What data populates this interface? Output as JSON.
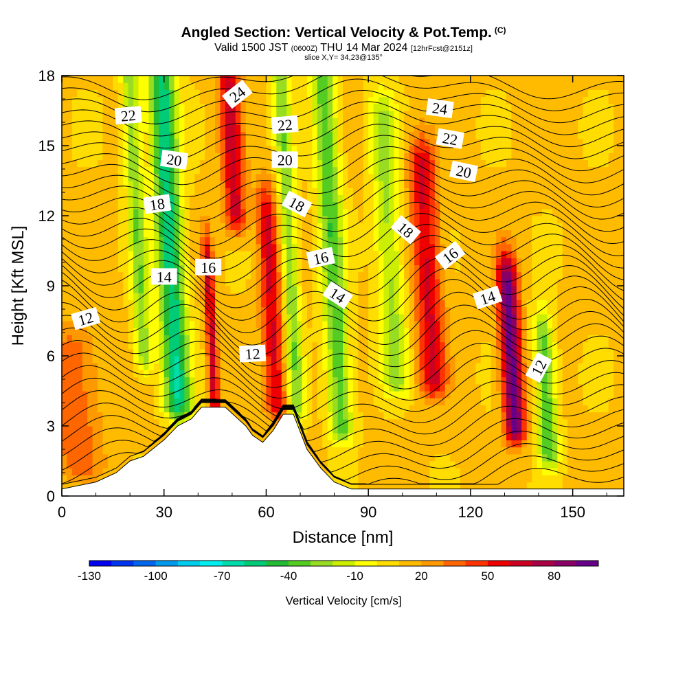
{
  "header": {
    "title": "Angled Section: Vertical Velocity & Pot.Temp.",
    "title_badge": "(C)",
    "line2_a": "Valid 1500 JST",
    "line2_b": "(0600Z)",
    "line2_c": "THU 14 Mar 2024",
    "line2_d": "[12hrFcst@2151z]",
    "line3": "slice X,Y= 34,23@135°"
  },
  "chart_data": {
    "type": "heatmap",
    "title": "Angled Section: Vertical Velocity & Pot.Temp.",
    "xlabel": "Distance [nm]",
    "ylabel": "Height [Kft MSL]",
    "xlim": [
      0,
      165
    ],
    "ylim": [
      0,
      18
    ],
    "xticks": [
      0,
      30,
      60,
      90,
      120,
      150
    ],
    "yticks": [
      0,
      3,
      6,
      9,
      12,
      15,
      18
    ],
    "colorbar": {
      "label": "Vertical Velocity [cm/s]",
      "tick_values": [
        -130,
        -100,
        -70,
        -40,
        -10,
        20,
        50,
        80
      ],
      "range": [
        -130,
        100
      ],
      "step": 10,
      "colors": [
        "#0000ee",
        "#0033ee",
        "#0066ee",
        "#0099ee",
        "#00ccee",
        "#00eeee",
        "#00ddaa",
        "#00cc77",
        "#22bb33",
        "#55cc22",
        "#99dd22",
        "#ccee00",
        "#ffff00",
        "#ffdd00",
        "#ffbb00",
        "#ff9900",
        "#ff6600",
        "#ff3300",
        "#ee0000",
        "#cc0022",
        "#aa0044",
        "#880066",
        "#660088"
      ]
    },
    "velocity_features": [
      {
        "x": 34,
        "zmin": 4.0,
        "zmax": 18,
        "w": -70,
        "width": 4
      },
      {
        "x": 24,
        "zmin": 6.0,
        "zmax": 18,
        "w": -40,
        "width": 2.5
      },
      {
        "x": 45,
        "zmin": 3.8,
        "zmax": 10,
        "w": 55,
        "width": 1.5
      },
      {
        "x": 51,
        "zmin": 12.0,
        "zmax": 18,
        "w": 55,
        "width": 3
      },
      {
        "x": 63,
        "zmin": 4.0,
        "zmax": 12,
        "w": 50,
        "width": 3
      },
      {
        "x": 69,
        "zmin": 4.0,
        "zmax": 18,
        "w": -40,
        "width": 2.5
      },
      {
        "x": 82,
        "zmin": 3.0,
        "zmax": 18,
        "w": -50,
        "width": 3.5
      },
      {
        "x": 98,
        "zmin": 5.0,
        "zmax": 16,
        "w": -35,
        "width": 4
      },
      {
        "x": 109,
        "zmin": 5.0,
        "zmax": 14,
        "w": 50,
        "width": 4
      },
      {
        "x": 133,
        "zmin": 3.0,
        "zmax": 9,
        "w": 85,
        "width": 3
      },
      {
        "x": 143,
        "zmin": 2.0,
        "zmax": 6.5,
        "w": -50,
        "width": 3
      },
      {
        "x": 5,
        "zmin": 1.5,
        "zmax": 6,
        "w": 25,
        "width": 7
      }
    ],
    "terrain": {
      "x": [
        0,
        10,
        16,
        20,
        24,
        30,
        34,
        38,
        41,
        44,
        48,
        54,
        56,
        59,
        62,
        65,
        68,
        72,
        76,
        80,
        85,
        90,
        165
      ],
      "height": [
        0.3,
        0.6,
        1.0,
        1.5,
        1.7,
        2.4,
        3.0,
        3.3,
        3.8,
        3.8,
        3.8,
        3.0,
        2.6,
        2.3,
        2.8,
        3.5,
        3.5,
        2.0,
        1.2,
        0.6,
        0.3,
        0.3,
        0.3
      ]
    },
    "isotherm_labels": [
      {
        "text": "22",
        "x": 19.5,
        "z": 16.3,
        "angle": -5
      },
      {
        "text": "24",
        "x": 51.5,
        "z": 17.2,
        "angle": -38
      },
      {
        "text": "22",
        "x": 65.5,
        "z": 15.9,
        "angle": -5
      },
      {
        "text": "24",
        "x": 111,
        "z": 16.6,
        "angle": 8
      },
      {
        "text": "20",
        "x": 33,
        "z": 14.4,
        "angle": 8
      },
      {
        "text": "20",
        "x": 65.5,
        "z": 14.4,
        "angle": 0
      },
      {
        "text": "22",
        "x": 114,
        "z": 15.3,
        "angle": 10
      },
      {
        "text": "20",
        "x": 118,
        "z": 13.9,
        "angle": 12
      },
      {
        "text": "18",
        "x": 28,
        "z": 12.5,
        "angle": -8
      },
      {
        "text": "18",
        "x": 69,
        "z": 12.5,
        "angle": 28
      },
      {
        "text": "18",
        "x": 101,
        "z": 11.4,
        "angle": 40
      },
      {
        "text": "16",
        "x": 43,
        "z": 9.8,
        "angle": 0
      },
      {
        "text": "16",
        "x": 76,
        "z": 10.2,
        "angle": -12
      },
      {
        "text": "16",
        "x": 114,
        "z": 10.3,
        "angle": -38
      },
      {
        "text": "14",
        "x": 30,
        "z": 9.4,
        "angle": 0
      },
      {
        "text": "14",
        "x": 81,
        "z": 8.6,
        "angle": 33
      },
      {
        "text": "14",
        "x": 125,
        "z": 8.5,
        "angle": -18
      },
      {
        "text": "12",
        "x": 7,
        "z": 7.6,
        "angle": -16
      },
      {
        "text": "12",
        "x": 56,
        "z": 6.1,
        "angle": -3
      },
      {
        "text": "12",
        "x": 140,
        "z": 5.5,
        "angle": -62
      }
    ]
  }
}
